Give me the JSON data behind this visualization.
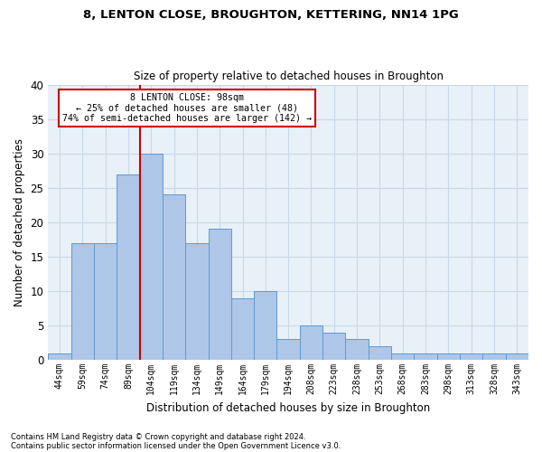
{
  "title1": "8, LENTON CLOSE, BROUGHTON, KETTERING, NN14 1PG",
  "title2": "Size of property relative to detached houses in Broughton",
  "xlabel": "Distribution of detached houses by size in Broughton",
  "ylabel": "Number of detached properties",
  "categories": [
    "44sqm",
    "59sqm",
    "74sqm",
    "89sqm",
    "104sqm",
    "119sqm",
    "134sqm",
    "149sqm",
    "164sqm",
    "179sqm",
    "194sqm",
    "208sqm",
    "223sqm",
    "238sqm",
    "253sqm",
    "268sqm",
    "283sqm",
    "298sqm",
    "313sqm",
    "328sqm",
    "343sqm"
  ],
  "values": [
    1,
    17,
    17,
    27,
    30,
    24,
    17,
    19,
    9,
    10,
    3,
    5,
    4,
    3,
    2,
    1,
    1,
    1,
    1,
    1,
    1
  ],
  "bar_color": "#aec6e8",
  "bar_edge_color": "#5b9bd5",
  "reference_line_index": 4,
  "reference_line_color": "#cc0000",
  "annotation_title": "8 LENTON CLOSE: 98sqm",
  "annotation_line1": "← 25% of detached houses are smaller (48)",
  "annotation_line2": "74% of semi-detached houses are larger (142) →",
  "annotation_box_color": "#ffffff",
  "annotation_box_edge": "#cc0000",
  "footnote1": "Contains HM Land Registry data © Crown copyright and database right 2024.",
  "footnote2": "Contains public sector information licensed under the Open Government Licence v3.0.",
  "ylim": [
    0,
    40
  ],
  "yticks": [
    0,
    5,
    10,
    15,
    20,
    25,
    30,
    35,
    40
  ],
  "background_color": "#ffffff",
  "axes_bg_color": "#e8f0f8",
  "grid_color": "#c8d8e8",
  "figsize": [
    6.0,
    5.0
  ],
  "dpi": 100
}
